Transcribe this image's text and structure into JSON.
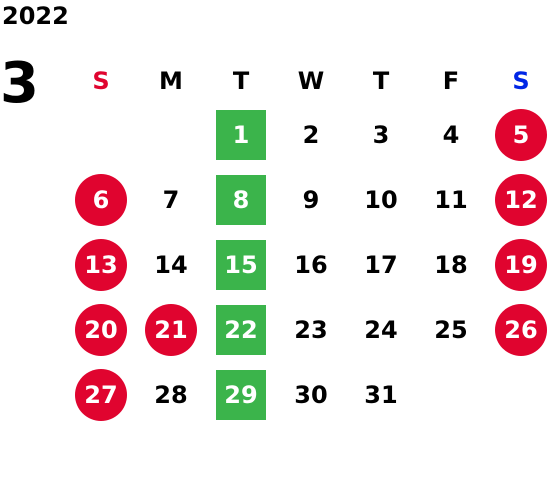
{
  "calendar": {
    "year": "2022",
    "month": "3",
    "weekdays": [
      "S",
      "M",
      "T",
      "W",
      "T",
      "F",
      "S"
    ],
    "colors": {
      "sunday": "#e0042f",
      "saturday": "#0026e6",
      "holiday_bg": "#e0042f",
      "highlight_bg": "#3bb44b"
    },
    "weeks": [
      [
        {
          "day": "",
          "style": "none"
        },
        {
          "day": "",
          "style": "none"
        },
        {
          "day": "1",
          "style": "tuesday"
        },
        {
          "day": "2",
          "style": "normal"
        },
        {
          "day": "3",
          "style": "normal"
        },
        {
          "day": "4",
          "style": "normal"
        },
        {
          "day": "5",
          "style": "holiday"
        }
      ],
      [
        {
          "day": "6",
          "style": "holiday"
        },
        {
          "day": "7",
          "style": "normal"
        },
        {
          "day": "8",
          "style": "tuesday"
        },
        {
          "day": "9",
          "style": "normal"
        },
        {
          "day": "10",
          "style": "normal"
        },
        {
          "day": "11",
          "style": "normal"
        },
        {
          "day": "12",
          "style": "holiday"
        }
      ],
      [
        {
          "day": "13",
          "style": "holiday"
        },
        {
          "day": "14",
          "style": "normal"
        },
        {
          "day": "15",
          "style": "tuesday"
        },
        {
          "day": "16",
          "style": "normal"
        },
        {
          "day": "17",
          "style": "normal"
        },
        {
          "day": "18",
          "style": "normal"
        },
        {
          "day": "19",
          "style": "holiday"
        }
      ],
      [
        {
          "day": "20",
          "style": "holiday"
        },
        {
          "day": "21",
          "style": "holiday"
        },
        {
          "day": "22",
          "style": "tuesday"
        },
        {
          "day": "23",
          "style": "normal"
        },
        {
          "day": "24",
          "style": "normal"
        },
        {
          "day": "25",
          "style": "normal"
        },
        {
          "day": "26",
          "style": "holiday"
        }
      ],
      [
        {
          "day": "27",
          "style": "holiday"
        },
        {
          "day": "28",
          "style": "normal"
        },
        {
          "day": "29",
          "style": "tuesday"
        },
        {
          "day": "30",
          "style": "normal"
        },
        {
          "day": "31",
          "style": "normal"
        },
        {
          "day": "",
          "style": "none"
        },
        {
          "day": "",
          "style": "none"
        }
      ]
    ]
  }
}
